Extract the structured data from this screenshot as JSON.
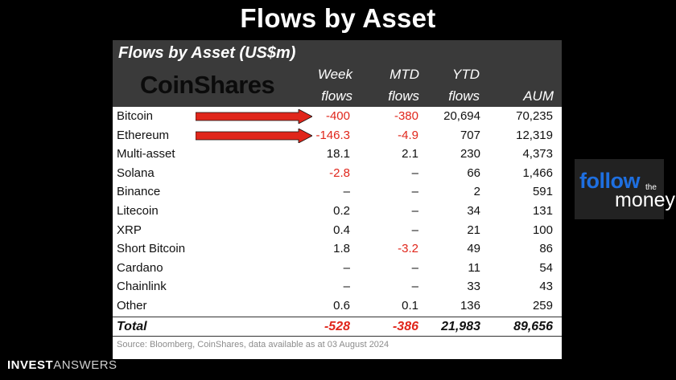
{
  "slide_title": "Flows by Asset",
  "card_title": "Flows by Asset (US$m)",
  "brand": "CoinShares",
  "columns": {
    "week": [
      "Week",
      "flows"
    ],
    "mtd": [
      "MTD",
      "flows"
    ],
    "ytd": [
      "YTD",
      "flows"
    ],
    "aum": [
      "AUM"
    ]
  },
  "source": "Source: Bloomberg, CoinShares, data available as at 03 August 2024",
  "footer": {
    "bold": "INVEST",
    "light": "ANSWERS"
  },
  "follow_money": {
    "follow": "follow",
    "the": "the",
    "money": "money"
  },
  "colors": {
    "negative": "#e0261b",
    "header_bg": "#3a3a3a",
    "follow_blue": "#1e6fe0"
  },
  "chart_data": {
    "type": "table",
    "title": "Flows by Asset (US$m)",
    "columns": [
      "Week flows",
      "MTD flows",
      "YTD flows",
      "AUM"
    ],
    "rows": [
      {
        "asset": "Bitcoin",
        "week": "-400",
        "mtd": "-380",
        "ytd": "20,694",
        "aum": "70,235",
        "week_neg": true,
        "mtd_neg": true,
        "arrow": true
      },
      {
        "asset": "Ethereum",
        "week": "-146.3",
        "mtd": "-4.9",
        "ytd": "707",
        "aum": "12,319",
        "week_neg": true,
        "mtd_neg": true,
        "arrow": true
      },
      {
        "asset": "Multi-asset",
        "week": "18.1",
        "mtd": "2.1",
        "ytd": "230",
        "aum": "4,373"
      },
      {
        "asset": "Solana",
        "week": "-2.8",
        "mtd": "–",
        "ytd": "66",
        "aum": "1,466",
        "week_neg": true
      },
      {
        "asset": "Binance",
        "week": "–",
        "mtd": "–",
        "ytd": "2",
        "aum": "591"
      },
      {
        "asset": "Litecoin",
        "week": "0.2",
        "mtd": "–",
        "ytd": "34",
        "aum": "131"
      },
      {
        "asset": "XRP",
        "week": "0.4",
        "mtd": "–",
        "ytd": "21",
        "aum": "100"
      },
      {
        "asset": "Short Bitcoin",
        "week": "1.8",
        "mtd": "-3.2",
        "ytd": "49",
        "aum": "86",
        "mtd_neg": true
      },
      {
        "asset": "Cardano",
        "week": "–",
        "mtd": "–",
        "ytd": "11",
        "aum": "54"
      },
      {
        "asset": "Chainlink",
        "week": "–",
        "mtd": "–",
        "ytd": "33",
        "aum": "43"
      },
      {
        "asset": "Other",
        "week": "0.6",
        "mtd": "0.1",
        "ytd": "136",
        "aum": "259"
      }
    ],
    "total": {
      "asset": "Total",
      "week": "-528",
      "mtd": "-386",
      "ytd": "21,983",
      "aum": "89,656"
    }
  }
}
